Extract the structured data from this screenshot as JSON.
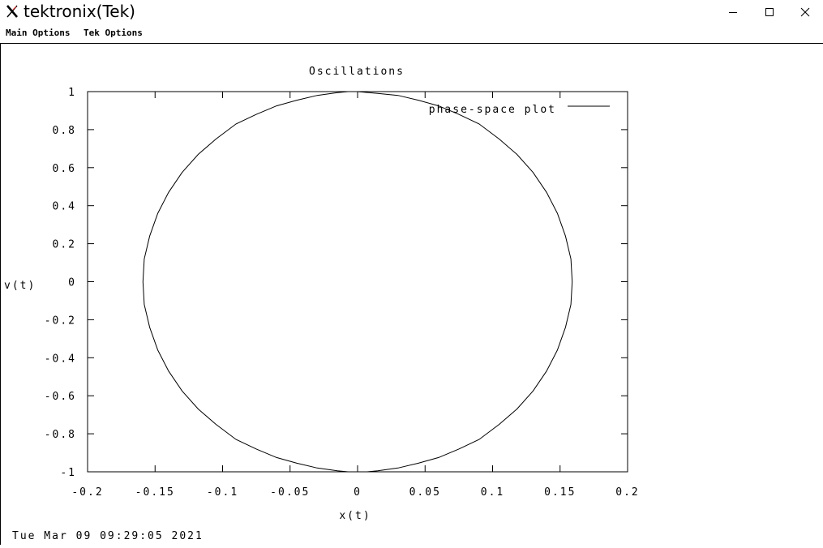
{
  "window": {
    "title": "tektronix(Tek)",
    "icon": "x-logo-icon",
    "controls": [
      "minimize",
      "maximize",
      "close"
    ]
  },
  "menu": {
    "items": [
      {
        "label": "Main Options"
      },
      {
        "label": "Tek Options"
      }
    ]
  },
  "footer": {
    "timestamp": "Tue Mar 09 09:29:05 2021"
  },
  "chart_data": {
    "type": "line",
    "title": "Oscillations",
    "xlabel": "x(t)",
    "ylabel": "v(t)",
    "xlim": [
      -0.2,
      0.2
    ],
    "ylim": [
      -1,
      1
    ],
    "xticks": [
      "-0.2",
      "-0.15",
      "-0.1",
      "-0.05",
      "0",
      "0.05",
      "0.1",
      "0.15",
      "0.2"
    ],
    "yticks": [
      "1",
      "0.8",
      "0.6",
      "0.4",
      "0.2",
      "0",
      "-0.2",
      "-0.4",
      "-0.6",
      "-0.8",
      "-1"
    ],
    "xtick_values": [
      -0.2,
      -0.15,
      -0.1,
      -0.05,
      0,
      0.05,
      0.1,
      0.15,
      0.2
    ],
    "ytick_values": [
      1,
      0.8,
      0.6,
      0.4,
      0.2,
      0,
      -0.2,
      -0.4,
      -0.6,
      -0.8,
      -1
    ],
    "grid": false,
    "legend_position": "top-right",
    "series": [
      {
        "name": "phase-space plot",
        "color": "#000000",
        "points": [
          [
            0.0,
            1.0
          ],
          [
            0.015,
            0.99
          ],
          [
            0.03,
            0.98
          ],
          [
            0.045,
            0.955
          ],
          [
            0.06,
            0.925
          ],
          [
            0.075,
            0.88
          ],
          [
            0.09,
            0.83
          ],
          [
            0.105,
            0.75
          ],
          [
            0.118,
            0.67
          ],
          [
            0.13,
            0.575
          ],
          [
            0.14,
            0.47
          ],
          [
            0.148,
            0.36
          ],
          [
            0.154,
            0.24
          ],
          [
            0.158,
            0.12
          ],
          [
            0.159,
            0.0
          ],
          [
            0.158,
            -0.12
          ],
          [
            0.154,
            -0.24
          ],
          [
            0.148,
            -0.36
          ],
          [
            0.14,
            -0.47
          ],
          [
            0.13,
            -0.575
          ],
          [
            0.118,
            -0.67
          ],
          [
            0.105,
            -0.75
          ],
          [
            0.09,
            -0.83
          ],
          [
            0.075,
            -0.88
          ],
          [
            0.06,
            -0.925
          ],
          [
            0.045,
            -0.955
          ],
          [
            0.03,
            -0.98
          ],
          [
            0.015,
            -0.995
          ],
          [
            0.007,
            -1.0
          ],
          [
            -0.007,
            -1.0
          ],
          [
            -0.015,
            -0.995
          ],
          [
            -0.03,
            -0.98
          ],
          [
            -0.045,
            -0.955
          ],
          [
            -0.06,
            -0.925
          ],
          [
            -0.075,
            -0.88
          ],
          [
            -0.09,
            -0.83
          ],
          [
            -0.105,
            -0.75
          ],
          [
            -0.118,
            -0.67
          ],
          [
            -0.13,
            -0.575
          ],
          [
            -0.14,
            -0.47
          ],
          [
            -0.148,
            -0.36
          ],
          [
            -0.154,
            -0.24
          ],
          [
            -0.158,
            -0.12
          ],
          [
            -0.159,
            0.0
          ],
          [
            -0.158,
            0.12
          ],
          [
            -0.154,
            0.24
          ],
          [
            -0.148,
            0.36
          ],
          [
            -0.14,
            0.47
          ],
          [
            -0.13,
            0.575
          ],
          [
            -0.118,
            0.67
          ],
          [
            -0.105,
            0.75
          ],
          [
            -0.09,
            0.83
          ],
          [
            -0.075,
            0.88
          ],
          [
            -0.06,
            0.925
          ],
          [
            -0.045,
            0.955
          ],
          [
            -0.03,
            0.98
          ],
          [
            -0.015,
            0.995
          ],
          [
            -0.007,
            1.0
          ],
          [
            0.0,
            1.0
          ]
        ]
      }
    ]
  }
}
